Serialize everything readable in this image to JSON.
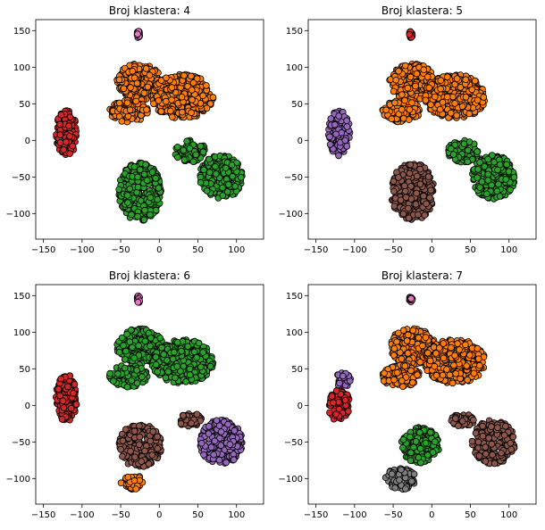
{
  "chart_data": [
    {
      "type": "scatter",
      "title": "Broj klastera: 4",
      "xlim": [
        -160,
        135
      ],
      "ylim": [
        -135,
        165
      ],
      "xticks": [
        -150,
        -100,
        -50,
        0,
        50,
        100
      ],
      "yticks": [
        -100,
        -50,
        0,
        50,
        100,
        150
      ],
      "clusters": [
        {
          "color": "#d62728",
          "blobs": [
            [
              -120,
              10,
              14,
              32
            ]
          ]
        },
        {
          "color": "#ff7f0e",
          "blobs": [
            [
              -25,
              80,
              30,
              25
            ],
            [
              30,
              60,
              40,
              30
            ],
            [
              -40,
              40,
              25,
              15
            ]
          ]
        },
        {
          "color": "#2ca02c",
          "blobs": [
            [
              -25,
              -70,
              28,
              40
            ],
            [
              80,
              -50,
              28,
              30
            ],
            [
              40,
              -15,
              20,
              15
            ]
          ]
        },
        {
          "color": "#e377c2",
          "blobs": [
            [
              -27,
              145,
              2,
              5
            ]
          ]
        }
      ]
    },
    {
      "type": "scatter",
      "title": "Broj klastera: 5",
      "xlim": [
        -160,
        135
      ],
      "ylim": [
        -135,
        165
      ],
      "xticks": [
        -150,
        -100,
        -50,
        0,
        50,
        100
      ],
      "yticks": [
        -100,
        -50,
        0,
        50,
        100,
        150
      ],
      "clusters": [
        {
          "color": "#9467bd",
          "blobs": [
            [
              -120,
              10,
              14,
              32
            ]
          ]
        },
        {
          "color": "#ff7f0e",
          "blobs": [
            [
              -25,
              80,
              30,
              25
            ],
            [
              30,
              60,
              40,
              30
            ],
            [
              -40,
              40,
              25,
              15
            ]
          ]
        },
        {
          "color": "#8c564b",
          "blobs": [
            [
              -25,
              -70,
              28,
              40
            ]
          ]
        },
        {
          "color": "#2ca02c",
          "blobs": [
            [
              80,
              -50,
              28,
              30
            ],
            [
              40,
              -15,
              20,
              15
            ]
          ]
        },
        {
          "color": "#d62728",
          "blobs": [
            [
              -27,
              145,
              2,
              5
            ]
          ]
        }
      ]
    },
    {
      "type": "scatter",
      "title": "Broj klastera: 6",
      "xlim": [
        -160,
        135
      ],
      "ylim": [
        -135,
        165
      ],
      "xticks": [
        -150,
        -100,
        -50,
        0,
        50,
        100
      ],
      "yticks": [
        -100,
        -50,
        0,
        50,
        100,
        150
      ],
      "clusters": [
        {
          "color": "#d62728",
          "blobs": [
            [
              -120,
              10,
              14,
              32
            ]
          ]
        },
        {
          "color": "#2ca02c",
          "blobs": [
            [
              -25,
              80,
              30,
              25
            ],
            [
              30,
              60,
              40,
              30
            ],
            [
              -40,
              40,
              25,
              15
            ]
          ]
        },
        {
          "color": "#8c564b",
          "blobs": [
            [
              -25,
              -55,
              28,
              30
            ],
            [
              40,
              -20,
              15,
              10
            ]
          ]
        },
        {
          "color": "#9467bd",
          "blobs": [
            [
              80,
              -50,
              28,
              30
            ]
          ]
        },
        {
          "color": "#ff7f0e",
          "blobs": [
            [
              -35,
              -105,
              15,
              10
            ]
          ]
        },
        {
          "color": "#e377c2",
          "blobs": [
            [
              -27,
              145,
              2,
              5
            ]
          ]
        }
      ]
    },
    {
      "type": "scatter",
      "title": "Broj klastera: 7",
      "xlim": [
        -160,
        135
      ],
      "ylim": [
        -135,
        165
      ],
      "xticks": [
        -150,
        -100,
        -50,
        0,
        50,
        100
      ],
      "yticks": [
        -100,
        -50,
        0,
        50,
        100,
        150
      ],
      "clusters": [
        {
          "color": "#d62728",
          "blobs": [
            [
              -120,
              0,
              14,
              22
            ]
          ]
        },
        {
          "color": "#9467bd",
          "blobs": [
            [
              -115,
              35,
              10,
              10
            ]
          ]
        },
        {
          "color": "#ff7f0e",
          "blobs": [
            [
              -25,
              80,
              30,
              25
            ],
            [
              30,
              60,
              40,
              30
            ],
            [
              -40,
              40,
              25,
              15
            ]
          ]
        },
        {
          "color": "#2ca02c",
          "blobs": [
            [
              -15,
              -55,
              25,
              25
            ]
          ]
        },
        {
          "color": "#7f7f7f",
          "blobs": [
            [
              -40,
              -100,
              20,
              15
            ]
          ]
        },
        {
          "color": "#8c564b",
          "blobs": [
            [
              80,
              -50,
              28,
              30
            ],
            [
              40,
              -20,
              15,
              10
            ]
          ]
        },
        {
          "color": "#e377c2",
          "blobs": [
            [
              -27,
              145,
              2,
              5
            ]
          ]
        }
      ]
    }
  ]
}
